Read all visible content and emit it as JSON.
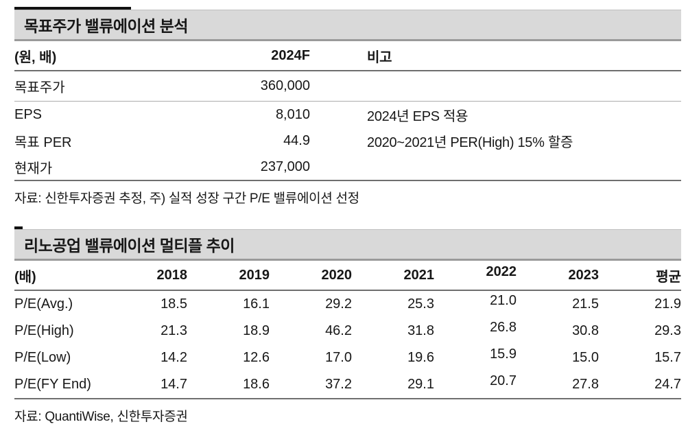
{
  "colors": {
    "title_bar_bg": "#d9d9d9",
    "accent_black": "#111111",
    "rule_dark": "#6e6e6e",
    "rule_light": "#ababab",
    "text": "#171717"
  },
  "table1": {
    "title": "목표주가 밸류에이션 분석",
    "header": {
      "unit": "(원, 배)",
      "year": "2024F",
      "note": "비고"
    },
    "rows": [
      {
        "label": "목표주가",
        "value": "360,000",
        "note": ""
      },
      {
        "label": "EPS",
        "value": "8,010",
        "note": "2024년 EPS 적용"
      },
      {
        "label": "목표 PER",
        "value": "44.9",
        "note": "2020~2021년 PER(High) 15% 할증"
      },
      {
        "label": "현재가",
        "value": "237,000",
        "note": ""
      }
    ],
    "source": "자료: 신한투자증권 추정, 주) 실적 성장 구간 P/E 밸류에이션 선정"
  },
  "table2": {
    "title": "리노공업 밸류에이션 멀티플 추이",
    "header": {
      "unit": "(배)",
      "cols": [
        "2018",
        "2019",
        "2020",
        "2021",
        "2022",
        "2023",
        "평균"
      ]
    },
    "rows": [
      {
        "label": "P/E(Avg.)",
        "values": [
          "18.5",
          "16.1",
          "29.2",
          "25.3",
          "21.0",
          "21.5",
          "21.9"
        ]
      },
      {
        "label": "P/E(High)",
        "values": [
          "21.3",
          "18.9",
          "46.2",
          "31.8",
          "26.8",
          "30.8",
          "29.3"
        ]
      },
      {
        "label": "P/E(Low)",
        "values": [
          "14.2",
          "12.6",
          "17.0",
          "19.6",
          "15.9",
          "15.0",
          "15.7"
        ]
      },
      {
        "label": "P/E(FY End)",
        "values": [
          "14.7",
          "18.6",
          "37.2",
          "29.1",
          "20.7",
          "27.8",
          "24.7"
        ]
      }
    ],
    "source": "자료: QuantiWise, 신한투자증권"
  }
}
